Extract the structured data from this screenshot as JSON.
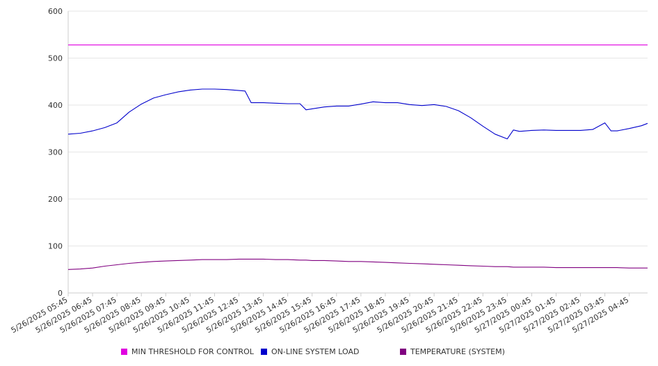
{
  "chart_data": {
    "type": "line",
    "title": "",
    "xlabel": "",
    "ylabel": "",
    "ylim": [
      0,
      600
    ],
    "y_ticks": [
      0,
      100,
      200,
      300,
      400,
      500,
      600
    ],
    "grid": true,
    "legend_position": "bottom",
    "x_tick_labels": [
      "5/26/2025 05:45",
      "5/26/2025 06:45",
      "5/26/2025 07:45",
      "5/26/2025 08:45",
      "5/26/2025 09:45",
      "5/26/2025 10:45",
      "5/26/2025 11:45",
      "5/26/2025 12:45",
      "5/26/2025 13:45",
      "5/26/2025 14:45",
      "5/26/2025 15:45",
      "5/26/2025 16:45",
      "5/26/2025 17:45",
      "5/26/2025 18:45",
      "5/26/2025 19:45",
      "5/26/2025 20:45",
      "5/26/2025 21:45",
      "5/26/2025 22:45",
      "5/26/2025 23:45",
      "5/27/2025 00:45",
      "5/27/2025 01:45",
      "5/27/2025 02:45",
      "5/27/2025 03:45",
      "5/27/2025 04:45"
    ],
    "x": [
      "5/26/2025 05:45",
      "5/26/2025 06:15",
      "5/26/2025 06:45",
      "5/26/2025 07:15",
      "5/26/2025 07:45",
      "5/26/2025 08:15",
      "5/26/2025 08:45",
      "5/26/2025 09:15",
      "5/26/2025 09:45",
      "5/26/2025 10:15",
      "5/26/2025 10:45",
      "5/26/2025 11:15",
      "5/26/2025 11:45",
      "5/26/2025 12:15",
      "5/26/2025 12:45",
      "5/26/2025 13:00",
      "5/26/2025 13:15",
      "5/26/2025 13:45",
      "5/26/2025 14:15",
      "5/26/2025 14:45",
      "5/26/2025 15:15",
      "5/26/2025 15:30",
      "5/26/2025 15:45",
      "5/26/2025 16:15",
      "5/26/2025 16:45",
      "5/26/2025 17:15",
      "5/26/2025 17:45",
      "5/26/2025 18:15",
      "5/26/2025 18:45",
      "5/26/2025 19:15",
      "5/26/2025 19:45",
      "5/26/2025 20:15",
      "5/26/2025 20:45",
      "5/26/2025 21:15",
      "5/26/2025 21:45",
      "5/26/2025 22:15",
      "5/26/2025 22:45",
      "5/26/2025 23:15",
      "5/26/2025 23:45",
      "5/27/2025 00:00",
      "5/27/2025 00:15",
      "5/27/2025 00:45",
      "5/27/2025 01:15",
      "5/27/2025 01:45",
      "5/27/2025 02:15",
      "5/27/2025 02:45",
      "5/27/2025 03:15",
      "5/27/2025 03:45",
      "5/27/2025 04:00",
      "5/27/2025 04:15",
      "5/27/2025 04:45",
      "5/27/2025 05:15",
      "5/27/2025 05:30"
    ],
    "series": [
      {
        "name": "MIN THRESHOLD FOR CONTROL",
        "color": "#e000e0",
        "values": [
          528,
          528,
          528,
          528,
          528,
          528,
          528,
          528,
          528,
          528,
          528,
          528,
          528,
          528,
          528,
          528,
          528,
          528,
          528,
          528,
          528,
          528,
          528,
          528,
          528,
          528,
          528,
          528,
          528,
          528,
          528,
          528,
          528,
          528,
          528,
          528,
          528,
          528,
          528,
          528,
          528,
          528,
          528,
          528,
          528,
          528,
          528,
          528,
          528,
          528,
          528,
          528,
          528
        ]
      },
      {
        "name": "ON-LINE SYSTEM LOAD",
        "color": "#0000cc",
        "values": [
          338,
          340,
          345,
          352,
          362,
          385,
          402,
          415,
          422,
          428,
          432,
          434,
          434,
          433,
          431,
          430,
          405,
          405,
          404,
          403,
          403,
          390,
          392,
          396,
          398,
          398,
          402,
          407,
          405,
          405,
          401,
          399,
          401,
          397,
          388,
          373,
          355,
          338,
          328,
          347,
          344,
          346,
          347,
          346,
          346,
          346,
          348,
          362,
          345,
          345,
          350,
          356,
          361
        ]
      },
      {
        "name": "TEMPERATURE (SYSTEM)",
        "color": "#800080",
        "values": [
          50,
          51,
          53,
          57,
          60,
          63,
          65,
          67,
          68,
          69,
          70,
          71,
          71,
          71,
          72,
          72,
          72,
          72,
          71,
          71,
          70,
          70,
          69,
          69,
          68,
          67,
          67,
          66,
          65,
          64,
          63,
          62,
          61,
          60,
          59,
          58,
          57,
          56,
          56,
          55,
          55,
          55,
          55,
          54,
          54,
          54,
          54,
          54,
          54,
          54,
          53,
          53,
          53
        ]
      }
    ]
  }
}
